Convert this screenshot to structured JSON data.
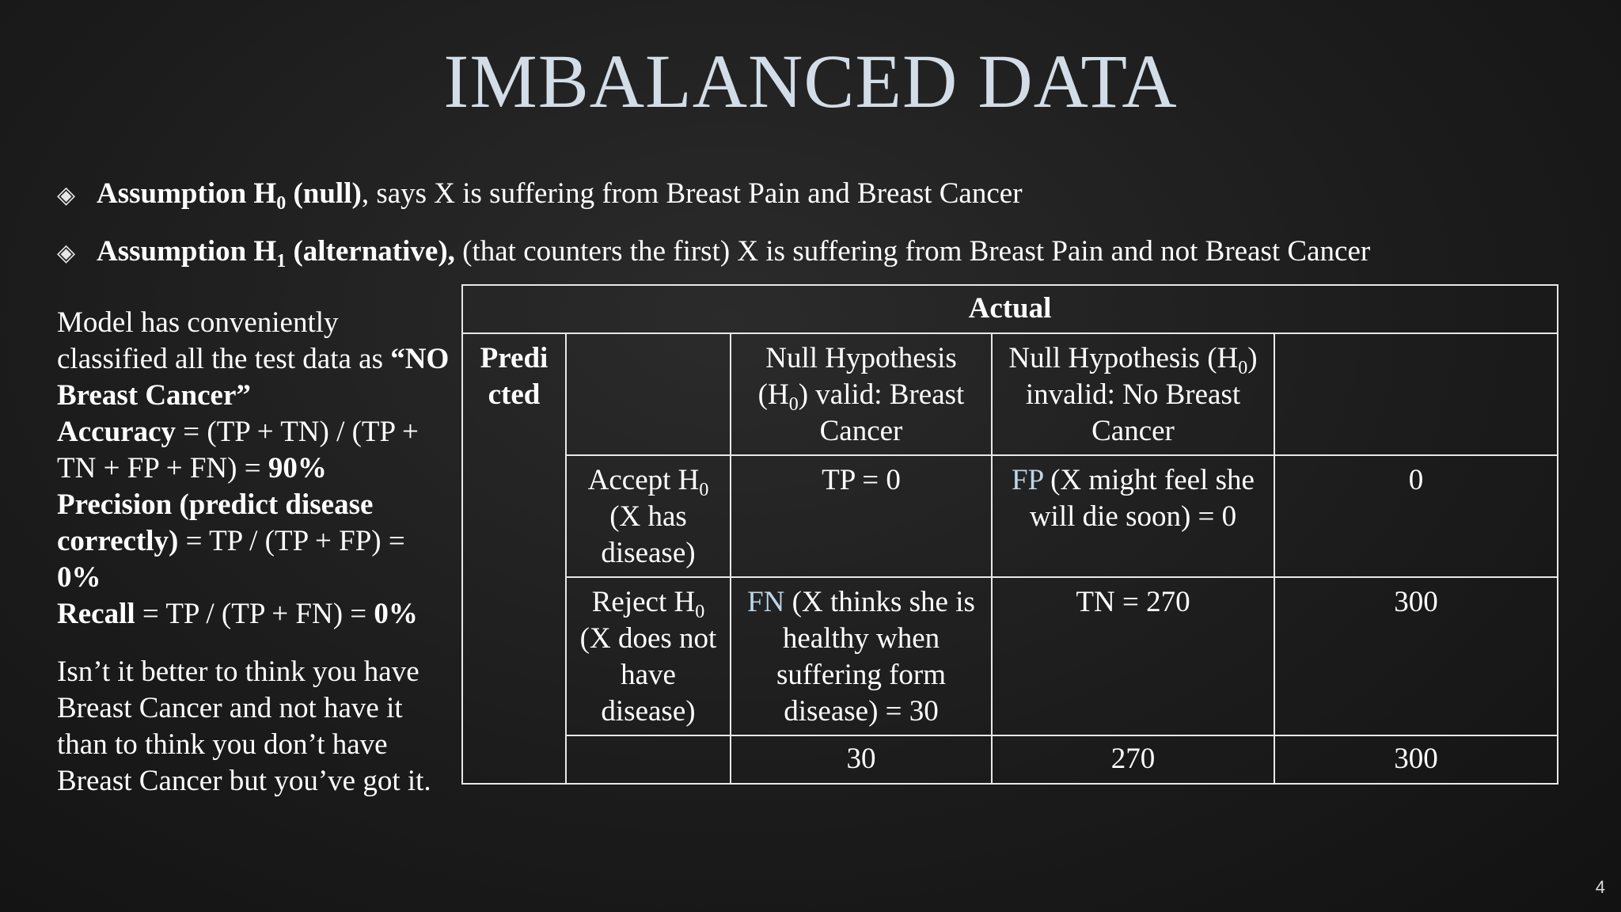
{
  "title": "IMBALANCED DATA",
  "bullets": [
    {
      "bold": "Assumption H",
      "sub": "0",
      "bold_tail": " (null)",
      "normal": ", says X is suffering from Breast Pain and Breast Cancer"
    },
    {
      "bold": "Assumption H",
      "sub": "1",
      "bold_tail": " (alternative),",
      "normal": "  (that counters the first) X is suffering from Breast Pain and not Breast Cancer"
    }
  ],
  "left": {
    "intro": "Model has conveniently classified all the test data as",
    "quote": "“NO Breast Cancer”",
    "accuracy_label": "Accuracy",
    "accuracy_formula": " = (TP + TN) / (TP + TN + FP + FN) = ",
    "accuracy_value": "90%",
    "precision_label": "Precision (predict disease correctly)",
    "precision_formula": " = TP / (TP + FP) = ",
    "precision_value": "0%",
    "recall_label": "Recall",
    "recall_formula": " = TP / (TP + FN) = ",
    "recall_value": "0%",
    "closing": "Isn’t it better to think you have Breast Cancer and not have it than to think you don’t have Breast Cancer but you’ve got it."
  },
  "table": {
    "actual_header": "Actual",
    "predicted_header": "Predi cted",
    "col_null_valid_a": "Null Hypothesis (H",
    "col_null_valid_sub": "0",
    "col_null_valid_b": ") valid: Breast Cancer",
    "col_null_invalid_a": "Null Hypothesis (H",
    "col_null_invalid_sub": "0",
    "col_null_invalid_b": ") invalid: No Breast Cancer",
    "row_accept_a": "Accept H",
    "row_accept_sub": "0",
    "row_accept_b": " (X has disease)",
    "row_reject_a": "Reject H",
    "row_reject_sub": "0",
    "row_reject_b": " (X does not have disease)",
    "tp": "TP = 0",
    "fp_label": "FP",
    "fp_text": " (X might feel she will die soon) = 0",
    "accept_total": "0",
    "fn_label": "FN",
    "fn_text": " (X thinks she is healthy when suffering form disease) = 30",
    "tn": "TN = 270",
    "reject_total": "300",
    "col_total_valid": "30",
    "col_total_invalid": "270",
    "grand_total": "300"
  },
  "slide_number": "4",
  "colors": {
    "title": "#d3dde7",
    "highlight": "#bcd6ea",
    "background": "#1c1c1c"
  }
}
